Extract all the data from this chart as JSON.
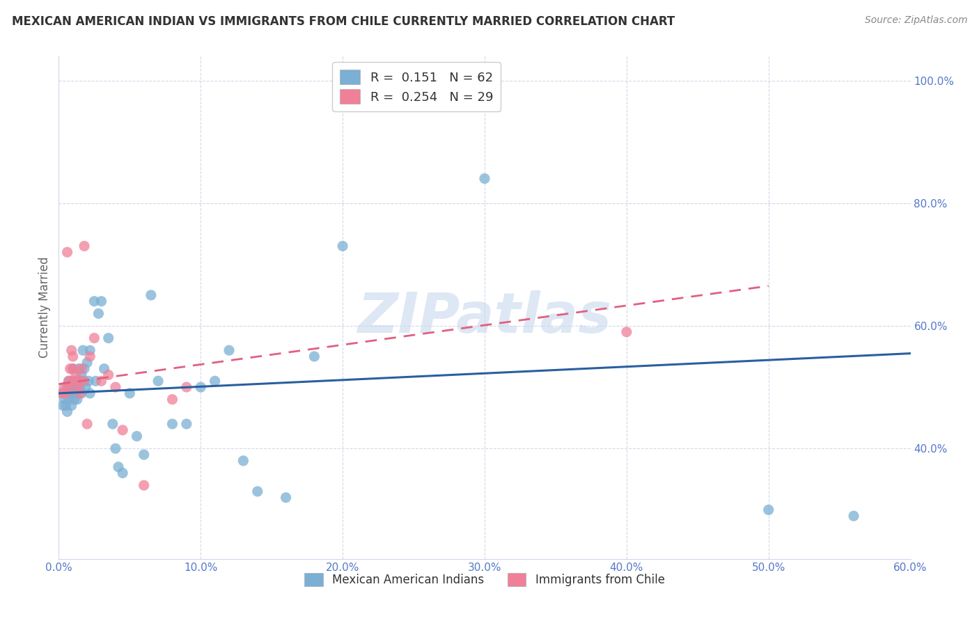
{
  "title": "MEXICAN AMERICAN INDIAN VS IMMIGRANTS FROM CHILE CURRENTLY MARRIED CORRELATION CHART",
  "source": "Source: ZipAtlas.com",
  "ylabel": "Currently Married",
  "xlim": [
    0.0,
    0.6
  ],
  "ylim": [
    0.22,
    1.04
  ],
  "xtick_vals": [
    0.0,
    0.1,
    0.2,
    0.3,
    0.4,
    0.5,
    0.6
  ],
  "xtick_labels": [
    "0.0%",
    "10.0%",
    "20.0%",
    "30.0%",
    "40.0%",
    "50.0%",
    "60.0%"
  ],
  "ytick_vals": [
    0.4,
    0.6,
    0.8,
    1.0
  ],
  "ytick_labels": [
    "40.0%",
    "60.0%",
    "80.0%",
    "100.0%"
  ],
  "blue_scatter_x": [
    0.003,
    0.003,
    0.004,
    0.005,
    0.006,
    0.006,
    0.007,
    0.007,
    0.008,
    0.008,
    0.009,
    0.009,
    0.01,
    0.01,
    0.01,
    0.011,
    0.011,
    0.012,
    0.012,
    0.013,
    0.013,
    0.014,
    0.014,
    0.015,
    0.016,
    0.016,
    0.017,
    0.018,
    0.018,
    0.019,
    0.02,
    0.021,
    0.022,
    0.022,
    0.025,
    0.026,
    0.028,
    0.03,
    0.032,
    0.035,
    0.038,
    0.04,
    0.042,
    0.045,
    0.05,
    0.055,
    0.06,
    0.065,
    0.07,
    0.08,
    0.09,
    0.1,
    0.11,
    0.12,
    0.13,
    0.14,
    0.16,
    0.18,
    0.2,
    0.3,
    0.5,
    0.56
  ],
  "blue_scatter_y": [
    0.47,
    0.49,
    0.48,
    0.47,
    0.46,
    0.5,
    0.48,
    0.51,
    0.5,
    0.49,
    0.47,
    0.5,
    0.49,
    0.51,
    0.53,
    0.48,
    0.5,
    0.49,
    0.51,
    0.5,
    0.48,
    0.51,
    0.53,
    0.5,
    0.52,
    0.49,
    0.56,
    0.51,
    0.53,
    0.5,
    0.54,
    0.51,
    0.49,
    0.56,
    0.64,
    0.51,
    0.62,
    0.64,
    0.53,
    0.58,
    0.44,
    0.4,
    0.37,
    0.36,
    0.49,
    0.42,
    0.39,
    0.65,
    0.51,
    0.44,
    0.44,
    0.5,
    0.51,
    0.56,
    0.38,
    0.33,
    0.32,
    0.55,
    0.73,
    0.84,
    0.3,
    0.29
  ],
  "pink_scatter_x": [
    0.002,
    0.004,
    0.005,
    0.006,
    0.007,
    0.007,
    0.008,
    0.009,
    0.01,
    0.01,
    0.01,
    0.012,
    0.013,
    0.014,
    0.015,
    0.016,
    0.017,
    0.018,
    0.02,
    0.022,
    0.025,
    0.03,
    0.035,
    0.04,
    0.045,
    0.06,
    0.08,
    0.09,
    0.4
  ],
  "pink_scatter_y": [
    0.49,
    0.5,
    0.49,
    0.72,
    0.5,
    0.51,
    0.53,
    0.56,
    0.51,
    0.53,
    0.55,
    0.52,
    0.5,
    0.51,
    0.49,
    0.53,
    0.51,
    0.73,
    0.44,
    0.55,
    0.58,
    0.51,
    0.52,
    0.5,
    0.43,
    0.34,
    0.48,
    0.5,
    0.59
  ],
  "blue_line_x": [
    0.0,
    0.6
  ],
  "blue_line_y": [
    0.49,
    0.555
  ],
  "pink_line_x": [
    0.0,
    0.5
  ],
  "pink_line_y": [
    0.505,
    0.665
  ],
  "bg_color": "#ffffff",
  "scatter_blue": "#7bafd4",
  "scatter_pink": "#f08098",
  "line_blue": "#2a5fa0",
  "line_pink": "#e06080",
  "grid_color": "#d0d8e8",
  "title_color": "#333333",
  "tick_label_color": "#5577cc",
  "watermark": "ZIPatlas",
  "watermark_color": "#c8d8ee",
  "legend_blue_r": "0.151",
  "legend_blue_n": "62",
  "legend_pink_r": "0.254",
  "legend_pink_n": "29"
}
